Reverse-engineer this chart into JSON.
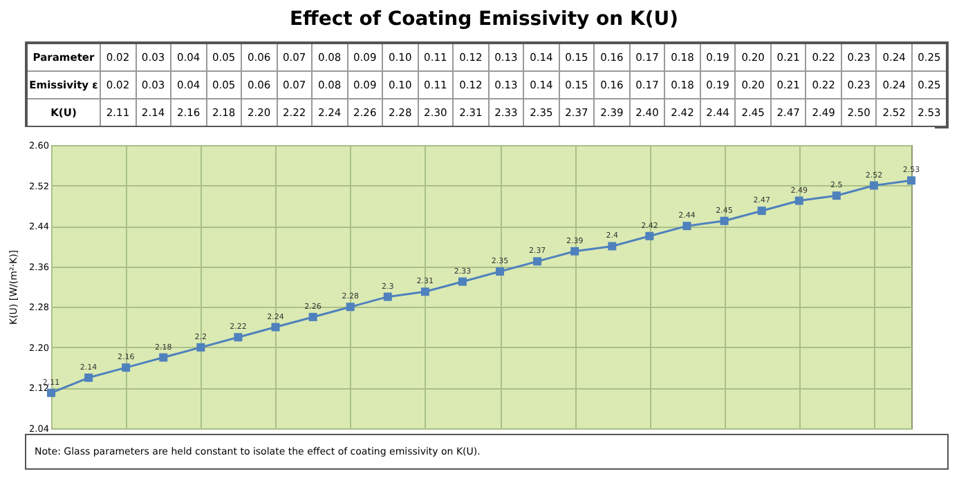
{
  "chart_data": {
    "type": "line",
    "title": "Effect of Coating Emissivity on K(U)",
    "categories": [
      null,
      null,
      null,
      null,
      null,
      null,
      null,
      null,
      null,
      null,
      null,
      null,
      null,
      null,
      null,
      null,
      null,
      null,
      null,
      null,
      null,
      null,
      null,
      null
    ],
    "values": [
      2.11,
      2.14,
      2.16,
      2.18,
      2.2,
      2.22,
      2.24,
      2.26,
      2.28,
      2.3,
      2.31,
      2.33,
      2.35,
      2.37,
      2.39,
      2.4,
      2.42,
      2.44,
      2.45,
      2.47,
      2.49,
      2.5,
      2.52,
      2.53
    ],
    "data_labels": true,
    "color": "#4f81bd",
    "ylabel": "K(U) [W/(m²·K)]",
    "ylim": [
      2.04,
      2.6
    ],
    "yticks": [
      2.04,
      2.12,
      {
        "value": 2.2,
        "label": "2.20"
      },
      2.28,
      2.36,
      2.44,
      2.52,
      {
        "value": 2.6,
        "label": "2.60"
      }
    ],
    "grid": true,
    "marker": "square",
    "tick_labels": "y",
    "annotations": [
      "Parameter",
      "Emissivity ε",
      "K(U)",
      "0.02",
      "0.03",
      "0.04",
      "0.05",
      "0.06",
      "0.07",
      "0.08",
      "0.09",
      "0.10",
      "0.11",
      "0.12",
      "0.13",
      "0.14",
      "0.15",
      "0.16",
      "0.17",
      "0.18",
      "0.19",
      "0.20",
      "0.21",
      "0.22",
      "0.23",
      "0.24",
      "0.25",
      "0.02",
      "0.03",
      "0.04",
      "0.05",
      "0.06",
      "0.07",
      "0.08",
      "0.09",
      "0.10",
      "0.11",
      "0.12",
      "0.13",
      "0.14",
      "0.15",
      "0.16",
      "0.17",
      "0.18",
      "0.19",
      "0.20",
      "0.21",
      "0.22",
      "0.23",
      "0.24",
      "0.25",
      "2.11",
      "2.14",
      "2.16",
      "2.18",
      "2.20",
      "2.22",
      "2.24",
      "2.26",
      "2.28",
      "2.30",
      "2.31",
      "2.33",
      "2.35",
      "2.37",
      "2.39",
      "2.40",
      "2.42",
      "2.44",
      "2.45",
      "2.47",
      "2.49",
      "2.50",
      "2.52",
      "2.53",
      "Note: Glass parameters are held constant to isolate the effect of coating emissivity on K(U)."
    ]
  }
}
